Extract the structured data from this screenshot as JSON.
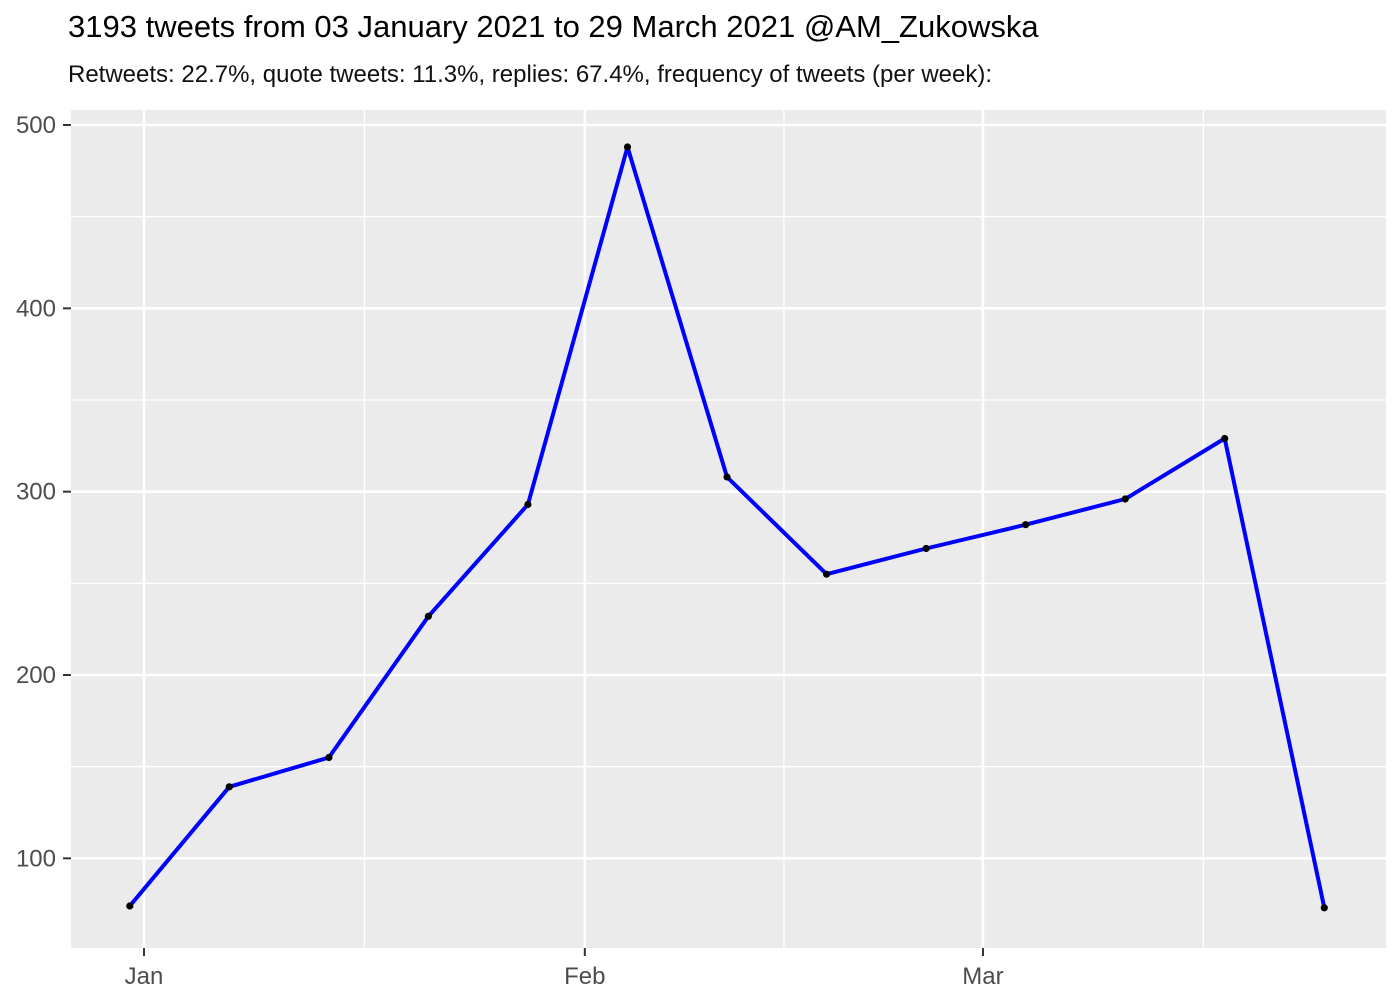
{
  "chart_data": {
    "type": "line",
    "title": "3193 tweets from 03 January 2021 to 29 March 2021 @AM_Zukowska",
    "subtitle": "Retweets: 22.7%, quote tweets: 11.3%, replies: 67.4%, frequency of tweets (per week):",
    "legend": false,
    "grid": true,
    "x_axis": {
      "tick_labels": [
        "Jan",
        "Feb",
        "Mar"
      ],
      "tick_days_from_jan1": [
        0,
        31,
        59
      ],
      "minor_gridline_days_from_jan1": [
        15.5,
        45,
        74.5
      ]
    },
    "y_axis": {
      "tick_labels": [
        "100",
        "200",
        "300",
        "400",
        "500"
      ],
      "tick_values": [
        100,
        200,
        300,
        400,
        500
      ],
      "minor_gridline_values": [
        150,
        250,
        350,
        450
      ],
      "visible_range": [
        51,
        508
      ]
    },
    "series": [
      {
        "name": "tweets-per-week",
        "week_start_dates_estimated": [
          "2020-12-28",
          "2021-01-04",
          "2021-01-11",
          "2021-01-18",
          "2021-01-25",
          "2021-02-01",
          "2021-02-08",
          "2021-02-15",
          "2021-02-22",
          "2021-03-01",
          "2021-03-08",
          "2021-03-15",
          "2021-03-22"
        ],
        "x_day_offsets_from_jan1": [
          -1,
          6,
          13,
          20,
          27,
          34,
          41,
          48,
          55,
          62,
          69,
          76,
          83
        ],
        "values": [
          74,
          139,
          155,
          232,
          293,
          488,
          308,
          255,
          269,
          282,
          296,
          329,
          73
        ]
      }
    ],
    "colors": {
      "line": "#0000FF",
      "point": "#000000",
      "panel_background": "#EBEBEB",
      "gridline": "#FFFFFF",
      "axis_text": "#4D4D4D",
      "tick_mark": "#333333",
      "title_text": "#000000",
      "page_background": "#FFFFFF"
    }
  }
}
